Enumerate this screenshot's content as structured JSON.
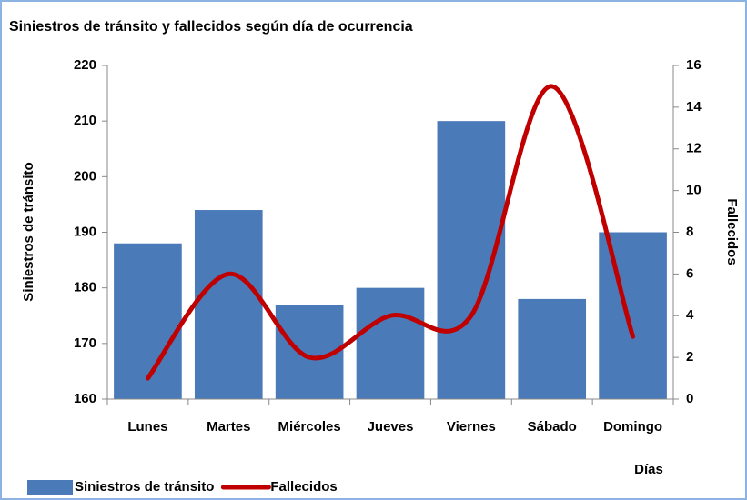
{
  "chart_data": {
    "type": "bar_line",
    "title": "Siniestros de tránsito y fallecidos según día de ocurrencia",
    "categories": [
      "Lunes",
      "Martes",
      "Miércoles",
      "Jueves",
      "Viernes",
      "Sábado",
      "Domingo"
    ],
    "series": [
      {
        "name": "Siniestros de tránsito",
        "type": "bar",
        "color": "#4a7ab8",
        "axis": "y",
        "values": [
          188,
          194,
          177,
          180,
          210,
          178,
          190
        ]
      },
      {
        "name": "Fallecidos",
        "type": "line",
        "color": "#c00000",
        "axis": "y2",
        "smooth": true,
        "values": [
          1,
          6,
          2,
          4,
          4,
          15,
          3
        ]
      }
    ],
    "xlabel": "Días",
    "ylabel": "Siniestros de tránsito",
    "y2label": "Fallecidos",
    "ylim": [
      160,
      220
    ],
    "yticks": [
      160,
      170,
      180,
      190,
      200,
      210,
      220
    ],
    "y2lim": [
      0,
      16
    ],
    "y2ticks": [
      0,
      2,
      4,
      6,
      8,
      10,
      12,
      14,
      16
    ],
    "legend": "bottom-left"
  }
}
